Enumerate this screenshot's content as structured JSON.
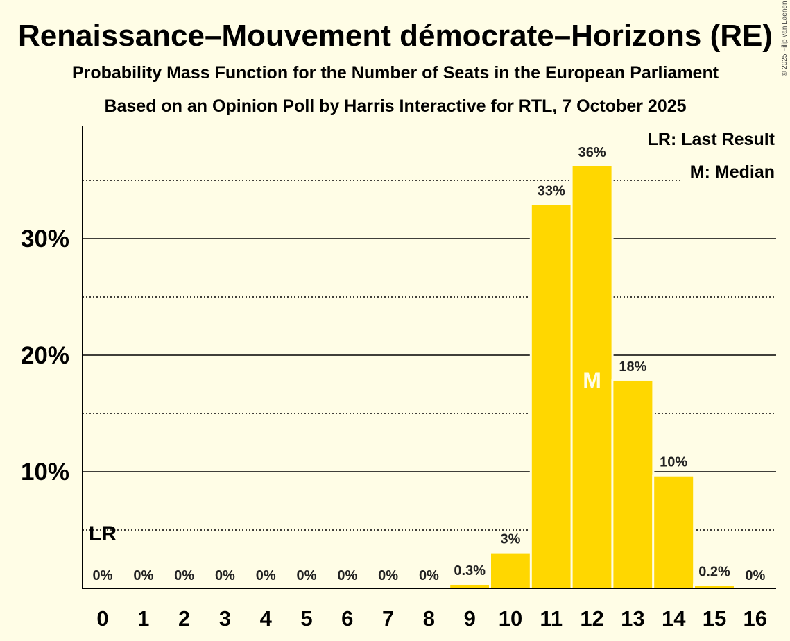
{
  "copyright": "© 2025 Filip van Laenen",
  "legend": {
    "last_result": "LR: Last Result",
    "median": "M: Median"
  },
  "chart_data": {
    "type": "bar",
    "title": "Renaissance–Mouvement démocrate–Horizons (RE)",
    "subtitle": "Probability Mass Function for the Number of Seats in the European Parliament",
    "subtitle2": "Based on an Opinion Poll by Harris Interactive for RTL, 7 October 2025",
    "xlabel": "",
    "ylabel": "",
    "categories": [
      "0",
      "1",
      "2",
      "3",
      "4",
      "5",
      "6",
      "7",
      "8",
      "9",
      "10",
      "11",
      "12",
      "13",
      "14",
      "15",
      "16"
    ],
    "values": [
      0,
      0,
      0,
      0,
      0,
      0,
      0,
      0,
      0,
      0.3,
      3,
      33,
      36,
      18,
      10,
      0.2,
      0
    ],
    "bar_heights_pct": [
      0,
      0,
      0,
      0,
      0,
      0,
      0,
      0,
      0,
      0.3,
      3.0,
      32.9,
      36.2,
      17.8,
      9.6,
      0.2,
      0
    ],
    "data_labels": [
      "0%",
      "0%",
      "0%",
      "0%",
      "0%",
      "0%",
      "0%",
      "0%",
      "0%",
      "0.3%",
      "3%",
      "33%",
      "36%",
      "18%",
      "10%",
      "0.2%",
      "0%"
    ],
    "y_ticks": [
      10,
      20,
      30
    ],
    "y_tick_labels": [
      "10%",
      "20%",
      "30%"
    ],
    "minor_gridlines": [
      5,
      15,
      25,
      35
    ],
    "ylim": [
      0,
      39
    ],
    "last_result_seat": 0,
    "last_result_marker": "LR",
    "median_seat": 12,
    "median_marker": "M",
    "bar_color": "#FFD700",
    "background_color": "#FFFDE6"
  }
}
